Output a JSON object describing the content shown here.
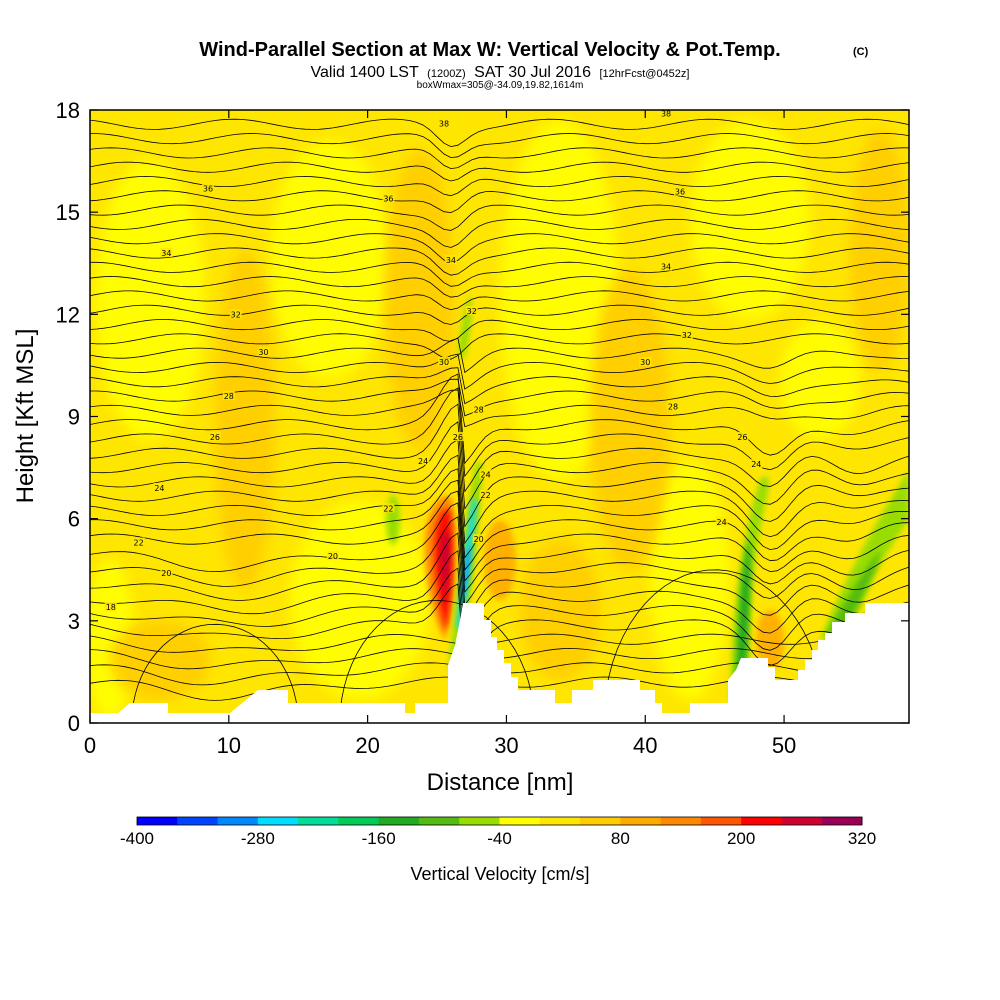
{
  "header": {
    "title": "Wind-Parallel Section at Max W: Vertical Velocity & Pot.Temp.",
    "copyright": "(C)",
    "valid_prefix": "Valid 1400 LST",
    "valid_utc": "(1200Z)",
    "valid_date": "SAT 30 Jul 2016",
    "forecast": "[12hrFcst@0452z]",
    "box_info": "boxWmax=305@-34.09,19.82,1614m"
  },
  "chart_data": {
    "type": "heatmap",
    "xlabel": "Distance [nm]",
    "ylabel": "Height [Kft MSL]",
    "xlim": [
      0,
      59
    ],
    "ylim": [
      0,
      18
    ],
    "x_ticks": [
      0,
      10,
      20,
      30,
      40,
      50
    ],
    "x_tick_labels": [
      "0",
      "10",
      "20",
      "30",
      "40",
      "50"
    ],
    "y_ticks": [
      0,
      3,
      6,
      9,
      12,
      15,
      18
    ],
    "y_tick_labels": [
      "0",
      "3",
      "6",
      "9",
      "12",
      "15",
      "18"
    ],
    "colorbar": {
      "label": "Vertical Velocity [cm/s]",
      "tick_values": [
        -400,
        -280,
        -160,
        -40,
        80,
        200,
        320
      ],
      "tick_labels": [
        "-400",
        "-280",
        "-160",
        "-40",
        "80",
        "200",
        "320"
      ],
      "colors": [
        "#0000ff",
        "#0044ff",
        "#0088ff",
        "#00ddff",
        "#00dd99",
        "#00cc55",
        "#22aa22",
        "#55bb11",
        "#99dd00",
        "#ffff00",
        "#ffe600",
        "#ffcc00",
        "#ffaa00",
        "#ff8800",
        "#ff5500",
        "#ff0000",
        "#cc0033",
        "#990055"
      ]
    },
    "contour_labels": [
      {
        "x": 1.5,
        "y": 3.4,
        "text": "18"
      },
      {
        "x": 5.5,
        "y": 4.4,
        "text": "20"
      },
      {
        "x": 17.5,
        "y": 4.9,
        "text": "20"
      },
      {
        "x": 28,
        "y": 5.4,
        "text": "20"
      },
      {
        "x": 3.5,
        "y": 5.3,
        "text": "22"
      },
      {
        "x": 21.5,
        "y": 6.3,
        "text": "22"
      },
      {
        "x": 28.5,
        "y": 6.7,
        "text": "22"
      },
      {
        "x": 5,
        "y": 6.9,
        "text": "24"
      },
      {
        "x": 24,
        "y": 7.7,
        "text": "24"
      },
      {
        "x": 28.5,
        "y": 7.3,
        "text": "24"
      },
      {
        "x": 45.5,
        "y": 5.9,
        "text": "24"
      },
      {
        "x": 48,
        "y": 7.6,
        "text": "24"
      },
      {
        "x": 9,
        "y": 8.4,
        "text": "26"
      },
      {
        "x": 26.5,
        "y": 8.4,
        "text": "26"
      },
      {
        "x": 47,
        "y": 8.4,
        "text": "26"
      },
      {
        "x": 10,
        "y": 9.6,
        "text": "28"
      },
      {
        "x": 28,
        "y": 9.2,
        "text": "28"
      },
      {
        "x": 42,
        "y": 9.3,
        "text": "28"
      },
      {
        "x": 12.5,
        "y": 10.9,
        "text": "30"
      },
      {
        "x": 25.5,
        "y": 10.6,
        "text": "30"
      },
      {
        "x": 40,
        "y": 10.6,
        "text": "30"
      },
      {
        "x": 10.5,
        "y": 12.0,
        "text": "32"
      },
      {
        "x": 27.5,
        "y": 12.1,
        "text": "32"
      },
      {
        "x": 43,
        "y": 11.4,
        "text": "32"
      },
      {
        "x": 5.5,
        "y": 13.8,
        "text": "34"
      },
      {
        "x": 26,
        "y": 13.6,
        "text": "34"
      },
      {
        "x": 41.5,
        "y": 13.4,
        "text": "34"
      },
      {
        "x": 8.5,
        "y": 15.7,
        "text": "36"
      },
      {
        "x": 21.5,
        "y": 15.4,
        "text": "36"
      },
      {
        "x": 42.5,
        "y": 15.6,
        "text": "36"
      },
      {
        "x": 25.5,
        "y": 17.6,
        "text": "38"
      },
      {
        "x": 41.5,
        "y": 17.9,
        "text": "38"
      }
    ]
  }
}
